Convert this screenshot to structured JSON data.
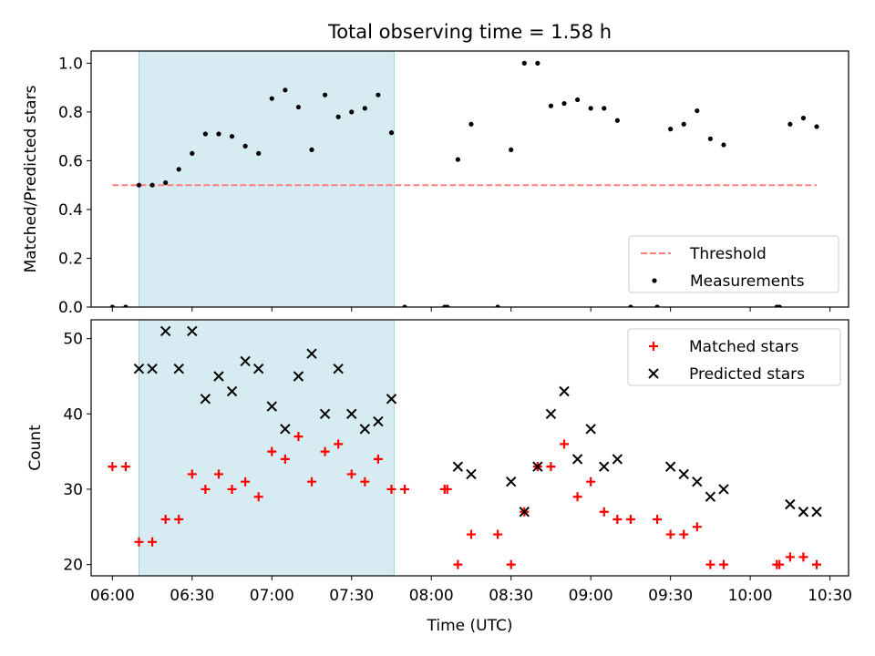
{
  "chart_data": [
    {
      "type": "scatter",
      "title": "Total observing time = 1.58 h",
      "ylabel": "Matched/Predicted stars",
      "xlabel": "",
      "xlim": [
        "05:52",
        "10:37"
      ],
      "ylim": [
        0,
        1.05
      ],
      "y_ticks": [
        "0.0",
        "0.2",
        "0.4",
        "0.6",
        "0.8",
        "1.0"
      ],
      "shaded_interval": [
        "06:10",
        "07:46"
      ],
      "threshold": {
        "name": "Threshold",
        "value": 0.5,
        "x_range": [
          "06:00",
          "10:25"
        ],
        "color": "#ff7f7f",
        "style": "dashed"
      },
      "legend": {
        "position": "lower right",
        "entries": [
          "Threshold",
          "Measurements"
        ]
      },
      "series": [
        {
          "name": "Measurements",
          "marker": "dot",
          "color": "#000000",
          "x": [
            "06:00",
            "06:05",
            "06:10",
            "06:15",
            "06:20",
            "06:25",
            "06:30",
            "06:35",
            "06:40",
            "06:45",
            "06:50",
            "06:55",
            "07:00",
            "07:05",
            "07:10",
            "07:15",
            "07:20",
            "07:25",
            "07:30",
            "07:35",
            "07:40",
            "07:45",
            "07:50",
            "08:05",
            "08:06",
            "08:10",
            "08:15",
            "08:25",
            "08:30",
            "08:35",
            "08:40",
            "08:45",
            "08:50",
            "08:55",
            "09:00",
            "09:05",
            "09:10",
            "09:15",
            "09:25",
            "09:30",
            "09:35",
            "09:40",
            "09:45",
            "09:50",
            "10:10",
            "10:11",
            "10:15",
            "10:20",
            "10:25"
          ],
          "y": [
            0,
            0,
            0.5,
            0.5,
            0.51,
            0.565,
            0.63,
            0.71,
            0.71,
            0.7,
            0.66,
            0.63,
            0.855,
            0.89,
            0.82,
            0.645,
            0.87,
            0.78,
            0.8,
            0.815,
            0.87,
            0.715,
            0,
            0,
            0,
            0.605,
            0.75,
            0,
            0.645,
            1.0,
            1.0,
            0.825,
            0.835,
            0.85,
            0.815,
            0.815,
            0.765,
            0,
            0,
            0.73,
            0.75,
            0.805,
            0.69,
            0.665,
            0,
            0,
            0.75,
            0.775,
            0.74
          ]
        }
      ]
    },
    {
      "type": "scatter",
      "title": "",
      "ylabel": "Count",
      "xlabel": "Time (UTC)",
      "xlim": [
        "05:52",
        "10:37"
      ],
      "ylim": [
        18.5,
        52.5
      ],
      "y_ticks": [
        "20",
        "30",
        "40",
        "50"
      ],
      "x_ticks": [
        "06:00",
        "06:30",
        "07:00",
        "07:30",
        "08:00",
        "08:30",
        "09:00",
        "09:30",
        "10:00",
        "10:30"
      ],
      "shaded_interval": [
        "06:10",
        "07:46"
      ],
      "legend": {
        "position": "upper right",
        "entries": [
          "Matched stars",
          "Predicted stars"
        ]
      },
      "series": [
        {
          "name": "Matched stars",
          "marker": "plus",
          "color": "#ff0000",
          "x": [
            "06:00",
            "06:05",
            "06:10",
            "06:15",
            "06:20",
            "06:25",
            "06:30",
            "06:35",
            "06:40",
            "06:45",
            "06:50",
            "06:55",
            "07:00",
            "07:05",
            "07:10",
            "07:15",
            "07:20",
            "07:25",
            "07:30",
            "07:35",
            "07:40",
            "07:45",
            "07:50",
            "08:05",
            "08:06",
            "08:10",
            "08:15",
            "08:25",
            "08:30",
            "08:35",
            "08:40",
            "08:45",
            "08:50",
            "08:55",
            "09:00",
            "09:05",
            "09:10",
            "09:15",
            "09:25",
            "09:30",
            "09:35",
            "09:40",
            "09:45",
            "09:50",
            "10:10",
            "10:11",
            "10:15",
            "10:20",
            "10:25"
          ],
          "y": [
            33,
            33,
            23,
            23,
            26,
            26,
            32,
            30,
            32,
            30,
            31,
            29,
            35,
            34,
            37,
            31,
            35,
            36,
            32,
            31,
            34,
            30,
            30,
            30,
            30,
            20,
            24,
            24,
            20,
            27,
            33,
            33,
            36,
            29,
            31,
            27,
            26,
            26,
            26,
            24,
            24,
            25,
            20,
            20,
            20,
            20,
            21,
            21,
            20
          ]
        },
        {
          "name": "Predicted stars",
          "marker": "x",
          "color": "#000000",
          "x": [
            "06:10",
            "06:15",
            "06:20",
            "06:25",
            "06:30",
            "06:35",
            "06:40",
            "06:45",
            "06:50",
            "06:55",
            "07:00",
            "07:05",
            "07:10",
            "07:15",
            "07:20",
            "07:25",
            "07:30",
            "07:35",
            "07:40",
            "07:45",
            "08:10",
            "08:15",
            "08:30",
            "08:35",
            "08:40",
            "08:45",
            "08:50",
            "08:55",
            "09:00",
            "09:05",
            "09:10",
            "09:30",
            "09:35",
            "09:40",
            "09:45",
            "09:50",
            "10:15",
            "10:20",
            "10:25"
          ],
          "y": [
            46,
            46,
            51,
            46,
            51,
            42,
            45,
            43,
            47,
            46,
            41,
            38,
            45,
            48,
            40,
            46,
            40,
            38,
            39,
            42,
            33,
            32,
            31,
            27,
            33,
            40,
            43,
            34,
            38,
            33,
            34,
            33,
            32,
            31,
            29,
            30,
            28,
            27,
            27
          ]
        }
      ]
    }
  ]
}
